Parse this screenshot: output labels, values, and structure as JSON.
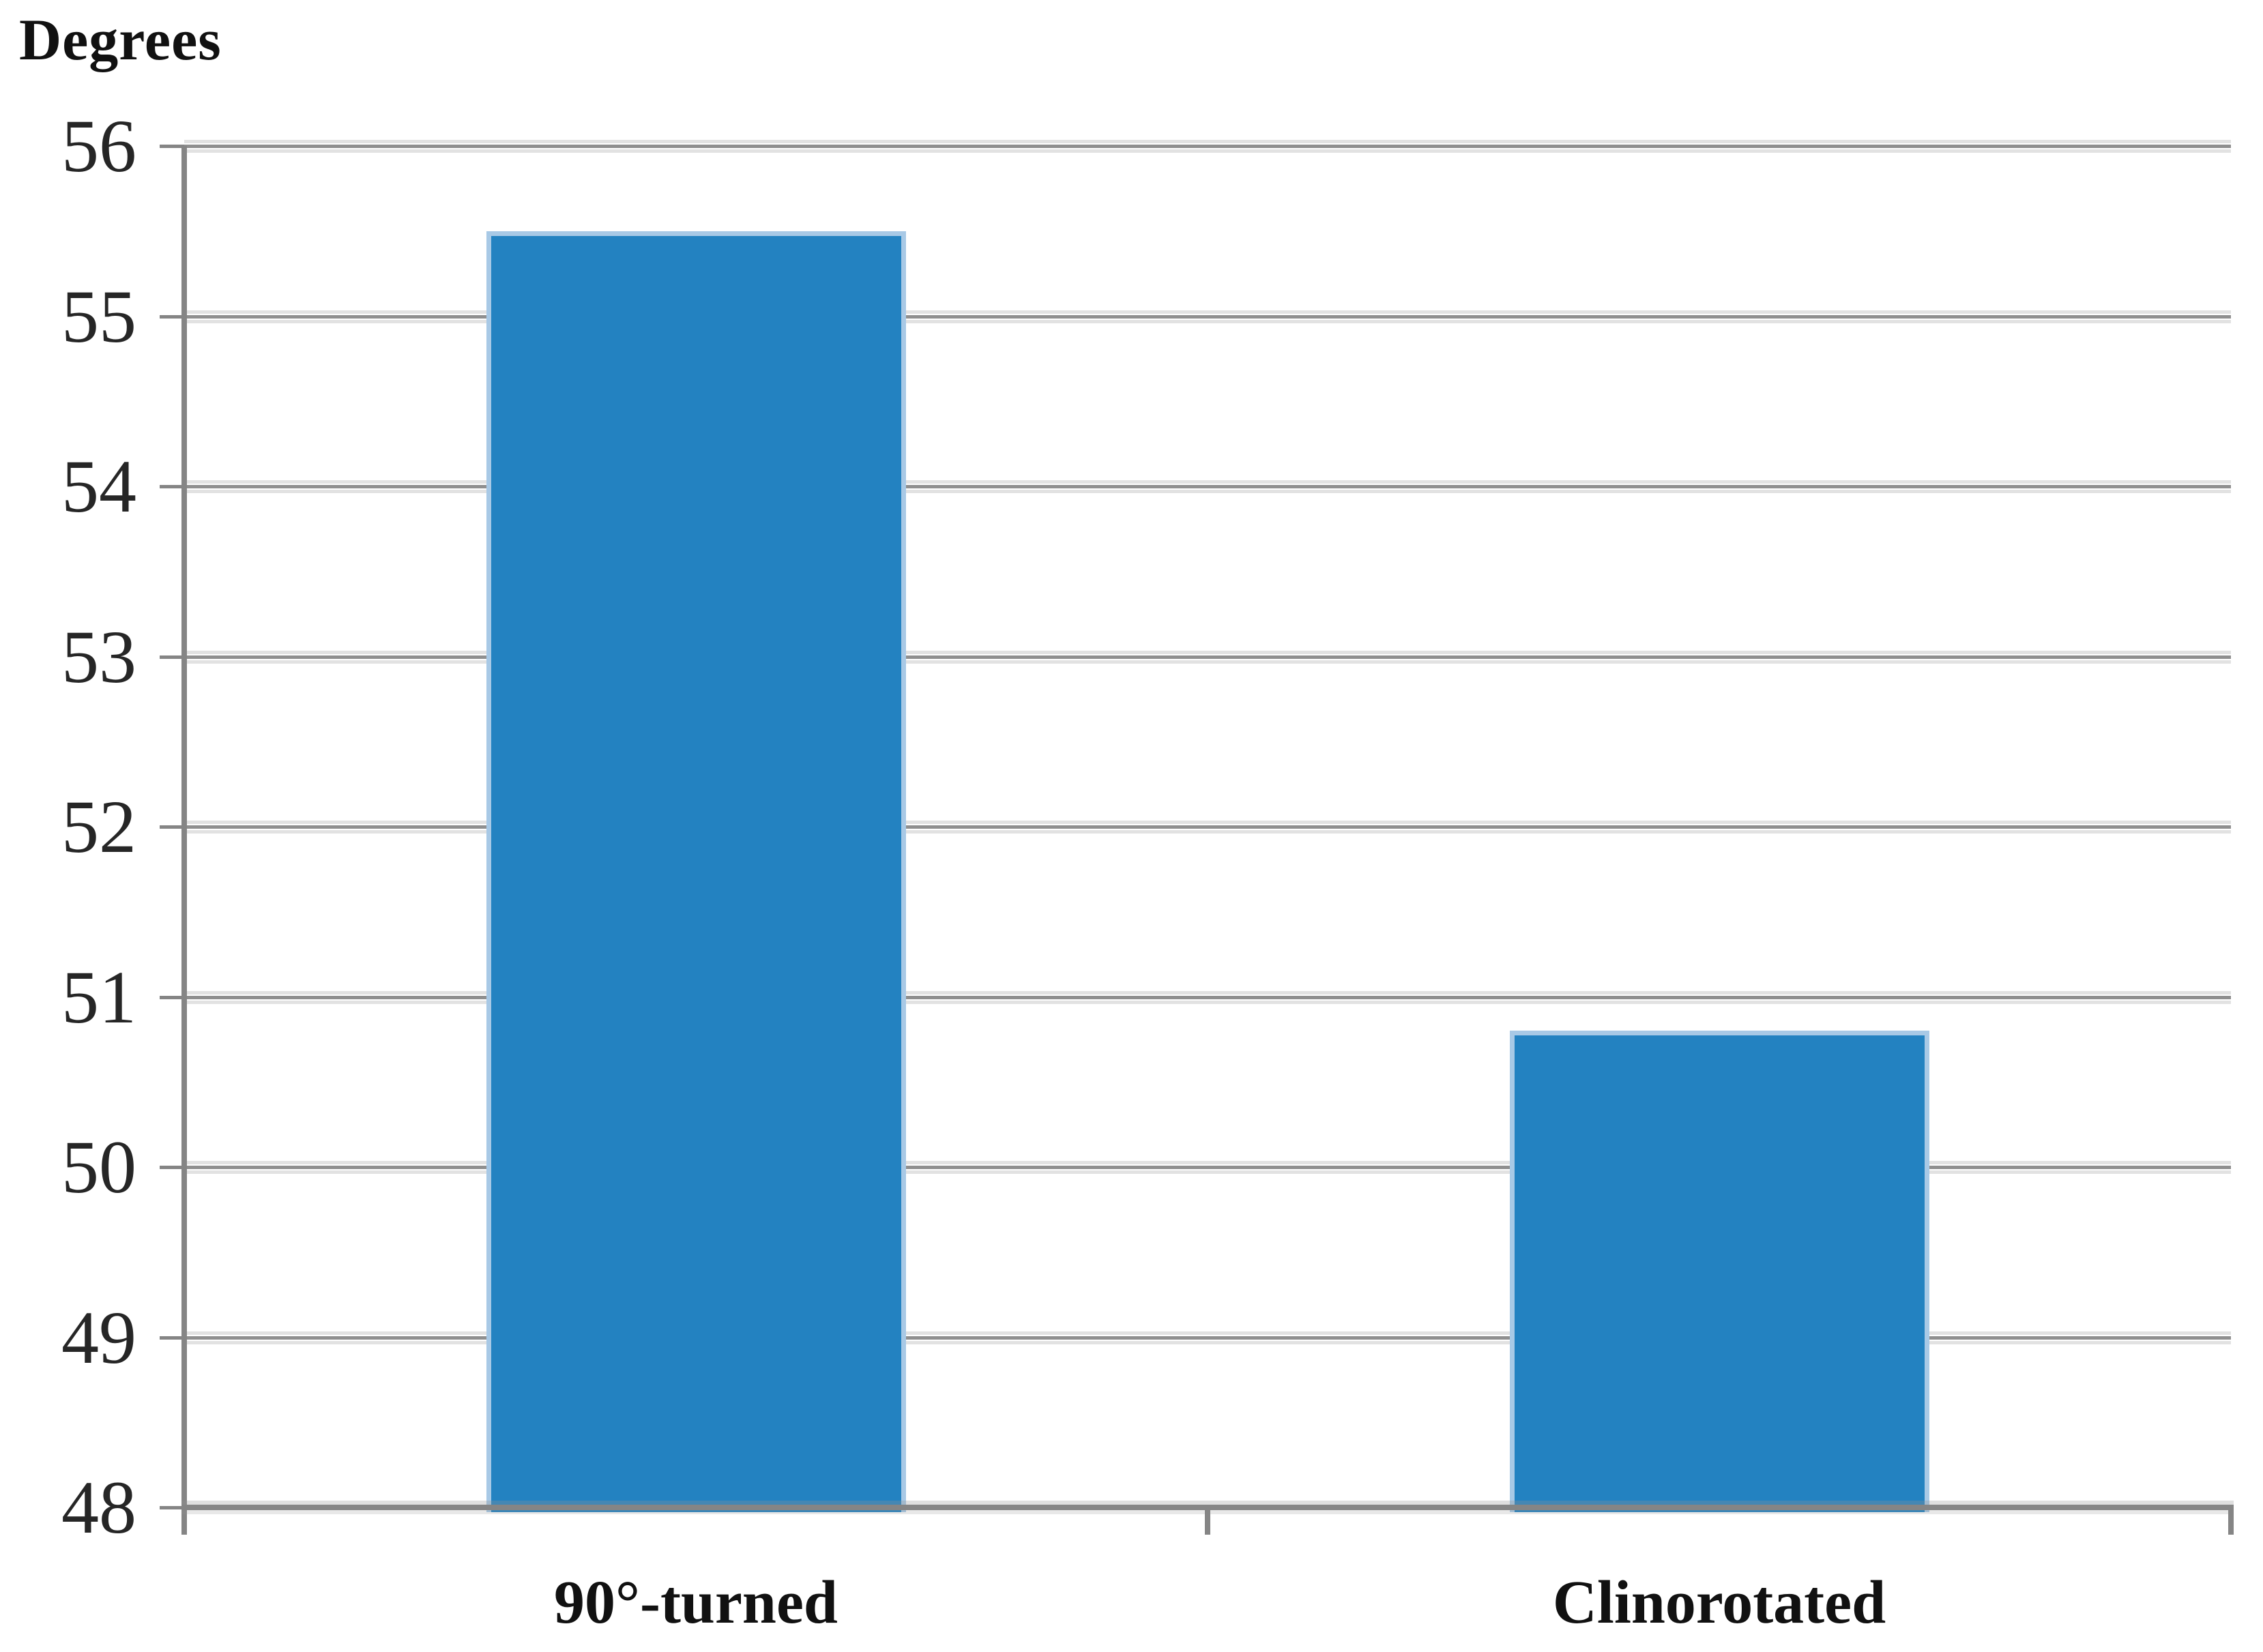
{
  "chart_data": {
    "type": "bar",
    "title": "",
    "ylabel": "Degrees",
    "xlabel": "",
    "categories": [
      "90°-turned",
      "Clinorotated"
    ],
    "values": [
      55.5,
      50.8
    ],
    "ylim": [
      48,
      56
    ],
    "yticks": [
      56,
      55,
      54,
      53,
      52,
      51,
      50,
      49,
      48
    ],
    "grid": "horizontal-on",
    "legend": "none",
    "colors": {
      "bar_fill": "#2382C1",
      "bar_edge": "#A8C9E6",
      "gridline": "#8F8F8F",
      "axis": "#858585",
      "tick_text": "#262626",
      "label_text": "#111111"
    }
  }
}
